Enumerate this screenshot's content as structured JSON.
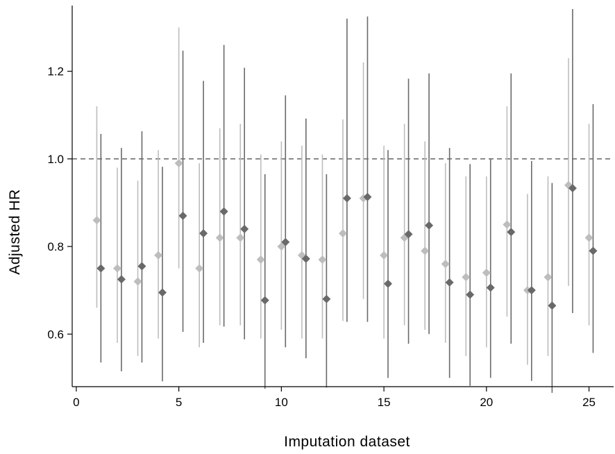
{
  "chart_data": {
    "type": "scatter",
    "xlabel": "Imputation dataset",
    "ylabel": "Adjusted HR",
    "xlim": [
      -0.2,
      26.2
    ],
    "ylim": [
      0.48,
      1.35
    ],
    "x_ticks": [
      0,
      5,
      10,
      15,
      20,
      25
    ],
    "x_tick_labels": [
      "0",
      "5",
      "10",
      "15",
      "20",
      "25"
    ],
    "y_ticks": [
      0.6,
      0.8,
      1.0,
      1.2
    ],
    "y_tick_labels": [
      "0.6",
      "0.8",
      "1.0",
      "1.2"
    ],
    "reference_line": {
      "y": 1.0,
      "style": "dashed"
    },
    "grid": false,
    "legend": "none",
    "colors": {
      "light_series": "#bdbdbd",
      "dark_series": "#696969",
      "reference": "#444444",
      "axis": "#000000"
    },
    "series": [
      {
        "x": [
          1,
          2,
          3,
          4,
          5,
          6,
          7,
          8,
          9,
          10,
          11,
          12,
          13,
          14,
          15,
          16,
          17,
          18,
          19,
          20,
          21,
          22,
          23,
          24,
          25
        ],
        "estimate": [
          0.86,
          0.75,
          0.72,
          0.78,
          0.99,
          0.75,
          0.82,
          0.82,
          0.77,
          0.8,
          0.78,
          0.77,
          0.83,
          0.91,
          0.78,
          0.82,
          0.79,
          0.76,
          0.73,
          0.74,
          0.85,
          0.7,
          0.73,
          0.94,
          0.82
        ],
        "lower": [
          0.66,
          0.58,
          0.55,
          0.59,
          0.75,
          0.57,
          0.62,
          0.62,
          0.59,
          0.61,
          0.59,
          0.59,
          0.63,
          0.68,
          0.59,
          0.62,
          0.61,
          0.58,
          0.55,
          0.57,
          0.64,
          0.53,
          0.55,
          0.71,
          0.62
        ],
        "upper": [
          1.12,
          0.98,
          0.95,
          1.02,
          1.3,
          0.99,
          1.07,
          1.08,
          1.01,
          1.04,
          1.03,
          1.01,
          1.09,
          1.22,
          1.03,
          1.08,
          1.04,
          0.99,
          0.96,
          0.96,
          1.12,
          0.92,
          0.96,
          1.23,
          1.08
        ]
      },
      {
        "x": [
          1.2,
          2.2,
          3.2,
          4.2,
          5.2,
          6.2,
          7.2,
          8.2,
          9.2,
          10.2,
          11.2,
          12.2,
          13.2,
          14.2,
          15.2,
          16.2,
          17.2,
          18.2,
          19.2,
          20.2,
          21.2,
          22.2,
          23.2,
          24.2,
          25.2
        ],
        "estimate": [
          0.75,
          0.725,
          0.755,
          0.695,
          0.87,
          0.83,
          0.88,
          0.84,
          0.677,
          0.81,
          0.772,
          0.68,
          0.91,
          0.913,
          0.715,
          0.828,
          0.848,
          0.718,
          0.69,
          0.706,
          0.833,
          0.7,
          0.665,
          0.933,
          0.79
        ],
        "lower": [
          0.535,
          0.515,
          0.535,
          0.492,
          0.605,
          0.58,
          0.617,
          0.588,
          0.475,
          0.57,
          0.545,
          0.478,
          0.628,
          0.628,
          0.5,
          0.578,
          0.6,
          0.5,
          0.482,
          0.5,
          0.578,
          0.493,
          0.466,
          0.648,
          0.557
        ],
        "upper": [
          1.057,
          1.025,
          1.063,
          0.982,
          1.247,
          1.178,
          1.26,
          1.208,
          0.965,
          1.145,
          1.092,
          0.965,
          1.32,
          1.325,
          1.02,
          1.183,
          1.195,
          1.025,
          0.988,
          1.0,
          1.195,
          0.995,
          0.945,
          1.342,
          1.125
        ]
      }
    ]
  }
}
